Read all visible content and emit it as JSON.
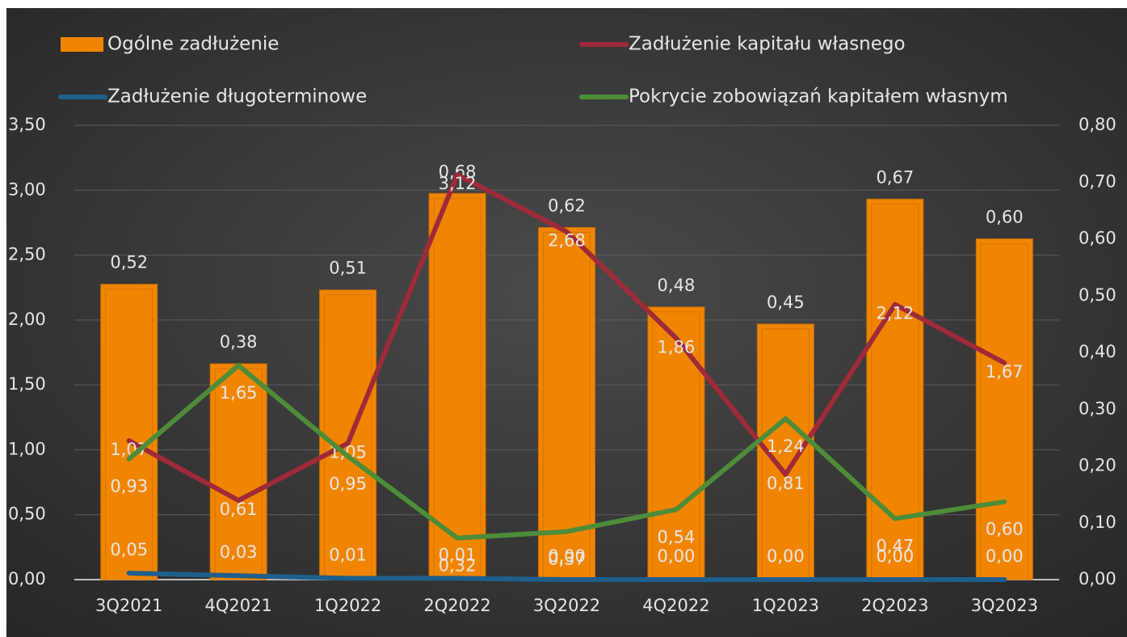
{
  "chart_data": {
    "type": "combo",
    "categories": [
      "3Q2021",
      "4Q2021",
      "1Q2022",
      "2Q2022",
      "3Q2022",
      "4Q2022",
      "1Q2023",
      "2Q2023",
      "3Q2023"
    ],
    "series": [
      {
        "name": "Ogólne zadłużenie",
        "type": "bar",
        "axis": "y2",
        "color": "#f28500",
        "values": [
          0.52,
          0.38,
          0.51,
          0.68,
          0.62,
          0.48,
          0.45,
          0.67,
          0.6
        ],
        "value_labels": [
          "0,52",
          "0,38",
          "0,51",
          "0,68",
          "0,62",
          "0,48",
          "0,45",
          "0,67",
          "0,60"
        ]
      },
      {
        "name": "Zadłużenie kapitału własnego",
        "type": "line",
        "color": "#9e2a3a",
        "values": [
          1.07,
          0.61,
          1.05,
          3.12,
          2.68,
          1.86,
          0.81,
          2.12,
          1.67
        ],
        "value_labels": [
          "1,07",
          "0,61",
          "1,05",
          "3,12",
          "2,68",
          "1,86",
          "0,81",
          "2,12",
          "1,67"
        ]
      },
      {
        "name": "Zadłużenie długoterminowe",
        "type": "line",
        "color": "#1f5f8b",
        "values": [
          0.05,
          0.03,
          0.01,
          0.01,
          0.0,
          0.0,
          0.0,
          0.0,
          0.0
        ],
        "value_labels": [
          "0,05",
          "0,03",
          "0,01",
          "0,01",
          "0,00",
          "0,00",
          "0,00",
          "0,00",
          "0,00"
        ]
      },
      {
        "name": "Pokrycie zobowiązań kapitałem własnym",
        "type": "line",
        "color": "#4e8c3a",
        "values": [
          0.93,
          1.65,
          0.95,
          0.32,
          0.37,
          0.54,
          1.24,
          0.47,
          0.6
        ],
        "value_labels": [
          "0,93",
          "1,65",
          "0,95",
          "0,32",
          "0,37",
          "0,54",
          "1,24",
          "0,47",
          "0,60"
        ]
      }
    ],
    "ylim": [
      0,
      3.5
    ],
    "yticks": [
      {
        "value": 0,
        "label": "0,00"
      },
      {
        "value": 0.5,
        "label": "0,50"
      },
      {
        "value": 1,
        "label": "1,00"
      },
      {
        "value": 1.5,
        "label": "1,50"
      },
      {
        "value": 2,
        "label": "2,00"
      },
      {
        "value": 2.5,
        "label": "2,50"
      },
      {
        "value": 3,
        "label": "3,00"
      },
      {
        "value": 3.5,
        "label": "3,50"
      }
    ],
    "y2lim": [
      0,
      0.8
    ],
    "y2ticks": [
      {
        "value": 0,
        "label": "0,00"
      },
      {
        "value": 0.1,
        "label": "0,10"
      },
      {
        "value": 0.2,
        "label": "0,20"
      },
      {
        "value": 0.3,
        "label": "0,30"
      },
      {
        "value": 0.4,
        "label": "0,40"
      },
      {
        "value": 0.5,
        "label": "0,50"
      },
      {
        "value": 0.6,
        "label": "0,60"
      },
      {
        "value": 0.7,
        "label": "0,70"
      },
      {
        "value": 0.8,
        "label": "0,80"
      }
    ],
    "grid": true,
    "legend": "top"
  }
}
